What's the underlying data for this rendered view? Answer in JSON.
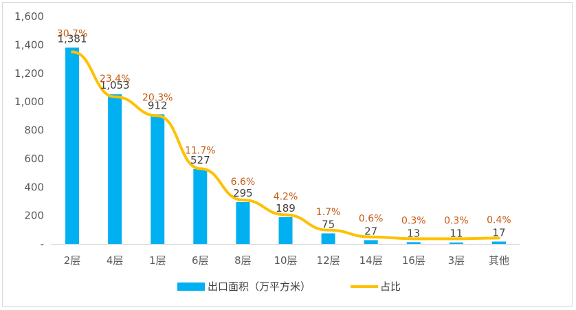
{
  "chart_data": {
    "type": "bar",
    "categories": [
      "2层",
      "4层",
      "1层",
      "6层",
      "8层",
      "10层",
      "12层",
      "14层",
      "16层",
      "3层",
      "其他"
    ],
    "y_ticks": [
      "-",
      "200",
      "400",
      "600",
      "800",
      "1,000",
      "1,200",
      "1,400",
      "1,600"
    ],
    "ylim": [
      0,
      1600
    ],
    "series": [
      {
        "name": "出口面积（万平方米）",
        "type": "bar",
        "values": [
          1381,
          1053,
          912,
          527,
          295,
          189,
          75,
          27,
          13,
          11,
          17
        ],
        "labels": [
          "1,381",
          "1,053",
          "912",
          "527",
          "295",
          "189",
          "75",
          "27",
          "13",
          "11",
          "17"
        ]
      },
      {
        "name": "占比",
        "type": "line",
        "values": [
          30.7,
          23.4,
          20.3,
          11.7,
          6.6,
          4.2,
          1.7,
          0.6,
          0.3,
          0.3,
          0.4
        ],
        "labels": [
          "30.7%",
          "23.4%",
          "20.3%",
          "11.7%",
          "6.6%",
          "4.2%",
          "1.7%",
          "0.6%",
          "0.3%",
          "0.3%",
          "0.4%"
        ]
      }
    ],
    "legend_position": "bottom",
    "grid": false,
    "colors": {
      "bar": "#00b0f0",
      "line": "#ffc000",
      "percent_label": "#c55a11",
      "axis": "#d9d9d9"
    }
  }
}
